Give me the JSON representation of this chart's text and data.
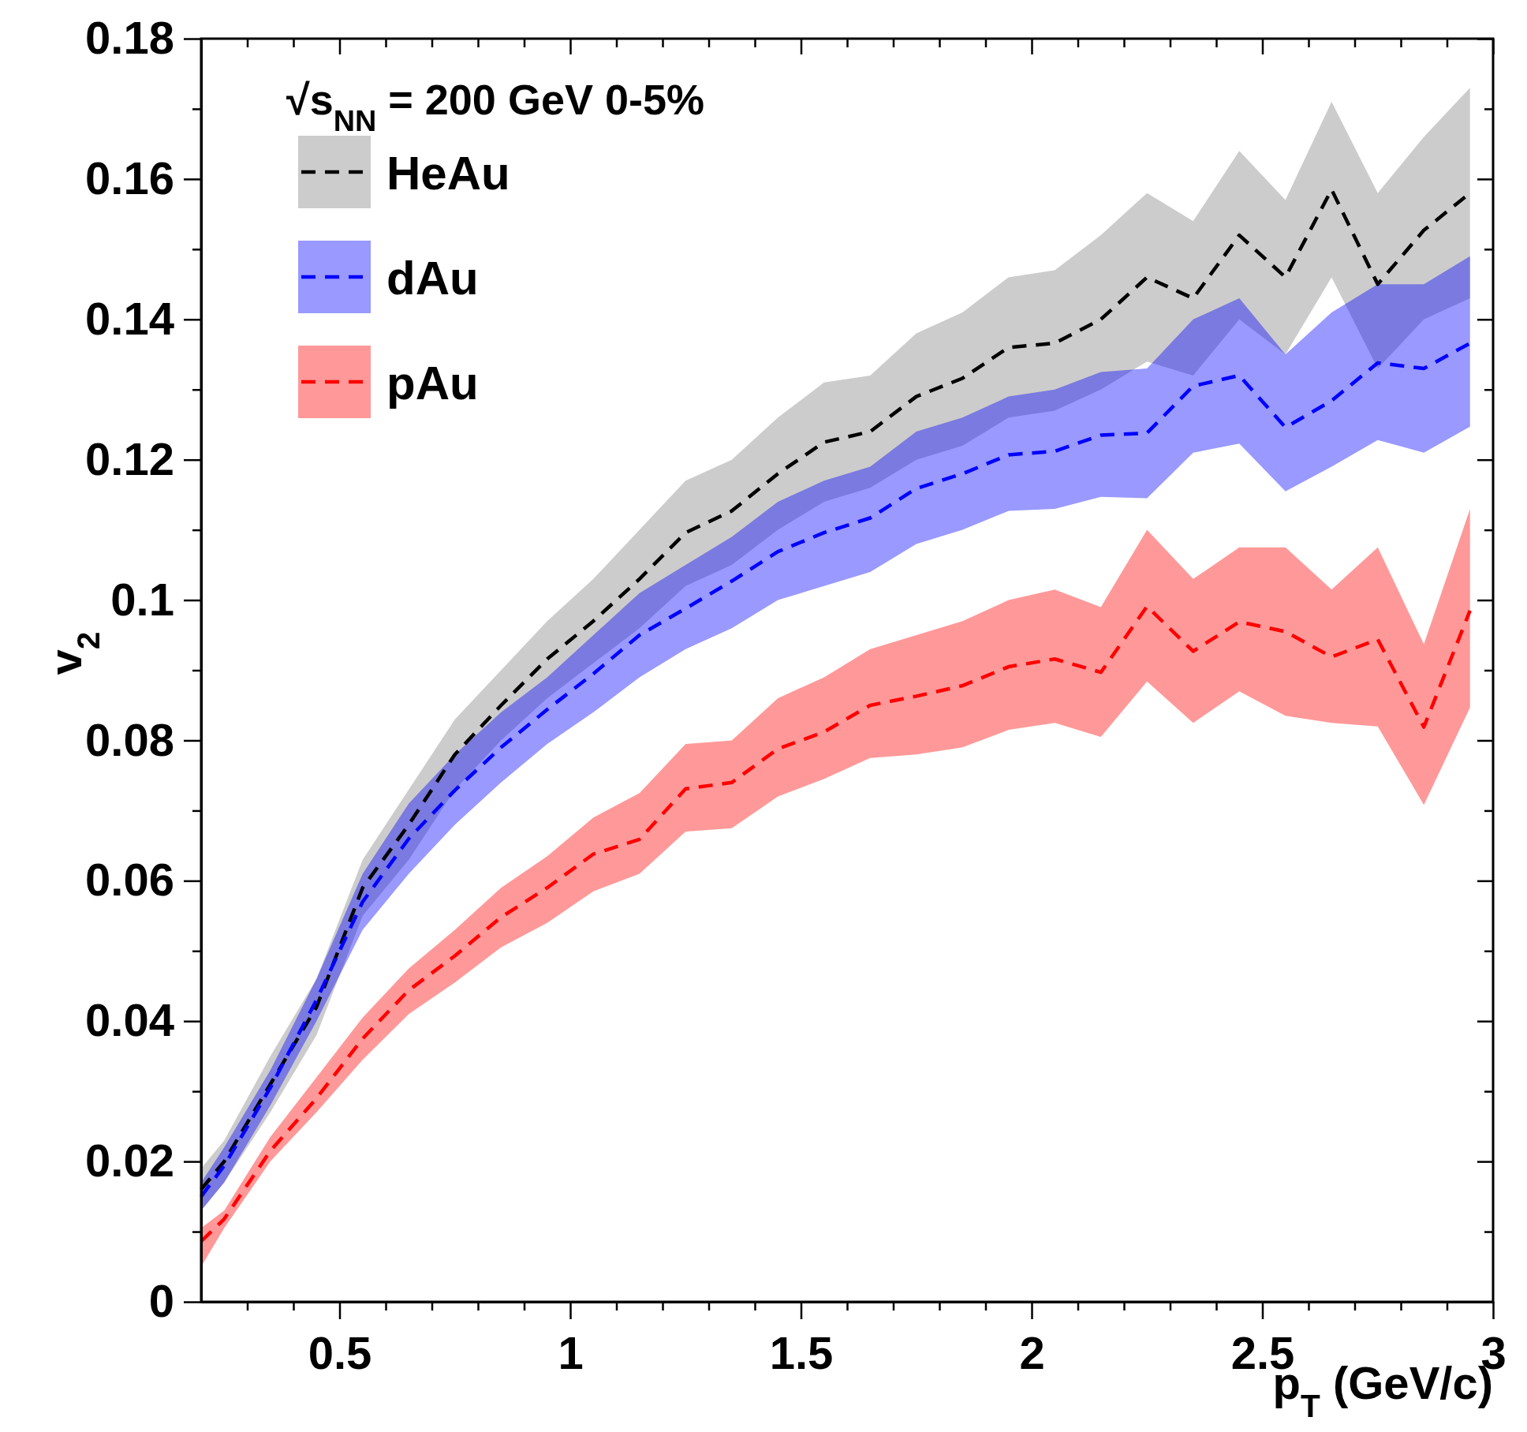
{
  "chart_data": {
    "type": "line",
    "xlabel": "p$_{T}$ (GeV/c)",
    "ylabel": "v$_{2}$",
    "annotations": [
      "√s$_{NN}$ = 200 GeV 0-5%"
    ],
    "x": [
      0.2,
      0.25,
      0.35,
      0.45,
      0.55,
      0.65,
      0.75,
      0.85,
      0.95,
      1.05,
      1.15,
      1.25,
      1.35,
      1.45,
      1.55,
      1.65,
      1.75,
      1.85,
      1.95,
      2.05,
      2.15,
      2.25,
      2.35,
      2.45,
      2.55,
      2.65,
      2.75,
      2.85,
      2.95
    ],
    "xlim": [
      0.2,
      3
    ],
    "xticks": [
      {
        "value": 0.3,
        "label": null
      },
      {
        "value": 0.4,
        "label": null
      },
      0.5,
      {
        "value": 0.6,
        "label": null
      },
      {
        "value": 0.7,
        "label": null
      },
      {
        "value": 0.8,
        "label": null
      },
      {
        "value": 0.9,
        "label": null
      },
      1,
      {
        "value": 1.1,
        "label": null
      },
      {
        "value": 1.2,
        "label": null
      },
      {
        "value": 1.3,
        "label": null
      },
      {
        "value": 1.4,
        "label": null
      },
      1.5,
      {
        "value": 1.6,
        "label": null
      },
      {
        "value": 1.7,
        "label": null
      },
      {
        "value": 1.8,
        "label": null
      },
      {
        "value": 1.9,
        "label": null
      },
      2,
      {
        "value": 2.1,
        "label": null
      },
      {
        "value": 2.2,
        "label": null
      },
      {
        "value": 2.3,
        "label": null
      },
      {
        "value": 2.4,
        "label": null
      },
      2.5,
      {
        "value": 2.6,
        "label": null
      },
      {
        "value": 2.7,
        "label": null
      },
      {
        "value": 2.8,
        "label": null
      },
      {
        "value": 2.9,
        "label": null
      },
      3
    ],
    "ylim": [
      0,
      0.18
    ],
    "yticks": [
      0,
      {
        "value": 0.01,
        "label": null
      },
      0.02,
      {
        "value": 0.03,
        "label": null
      },
      0.04,
      {
        "value": 0.05,
        "label": null
      },
      0.06,
      {
        "value": 0.07,
        "label": null
      },
      0.08,
      {
        "value": 0.09,
        "label": null
      },
      0.1,
      {
        "value": 0.11,
        "label": null
      },
      0.12,
      {
        "value": 0.13,
        "label": null
      },
      0.14,
      {
        "value": 0.15,
        "label": null
      },
      0.16,
      {
        "value": 0.17,
        "label": null
      },
      0.18
    ],
    "legend": "top left",
    "line_style": "dashed",
    "series": [
      {
        "name": "HeAu",
        "color": "#000000",
        "values": [
          0.016,
          0.02,
          0.031,
          0.042,
          0.059,
          0.068,
          0.078,
          0.085,
          0.0916,
          0.097,
          0.103,
          0.1096,
          0.1127,
          0.118,
          0.1225,
          0.124,
          0.129,
          0.1316,
          0.136,
          0.1366,
          0.14,
          0.146,
          0.143,
          0.152,
          0.146,
          0.1585,
          0.145,
          0.1527,
          0.158
        ],
        "lower": [
          0.013,
          0.017,
          0.027,
          0.038,
          0.055,
          0.063,
          0.073,
          0.08,
          0.086,
          0.091,
          0.096,
          0.102,
          0.105,
          0.11,
          0.114,
          0.116,
          0.12,
          0.122,
          0.126,
          0.127,
          0.13,
          0.134,
          0.132,
          0.14,
          0.135,
          0.146,
          0.133,
          0.14,
          0.143
        ],
        "upper": [
          0.019,
          0.023,
          0.035,
          0.046,
          0.063,
          0.073,
          0.083,
          0.09,
          0.097,
          0.103,
          0.11,
          0.117,
          0.12,
          0.126,
          0.131,
          0.132,
          0.138,
          0.141,
          0.146,
          0.147,
          0.152,
          0.158,
          0.154,
          0.164,
          0.157,
          0.171,
          0.158,
          0.166,
          0.173
        ]
      },
      {
        "name": "dAu",
        "color": "#0000ff",
        "values": [
          0.015,
          0.0194,
          0.0305,
          0.043,
          0.057,
          0.066,
          0.0729,
          0.079,
          0.0844,
          0.0895,
          0.095,
          0.0988,
          0.1027,
          0.1069,
          0.1096,
          0.1117,
          0.1159,
          0.118,
          0.1207,
          0.1212,
          0.1235,
          0.1238,
          0.1305,
          0.132,
          0.1246,
          0.1284,
          0.1338,
          0.133,
          0.1366
        ],
        "lower": [
          0.013,
          0.017,
          0.028,
          0.04,
          0.053,
          0.061,
          0.068,
          0.074,
          0.0795,
          0.084,
          0.089,
          0.093,
          0.096,
          0.1,
          0.102,
          0.104,
          0.108,
          0.11,
          0.1127,
          0.113,
          0.1147,
          0.1145,
          0.121,
          0.1223,
          0.1155,
          0.119,
          0.1228,
          0.121,
          0.1247
        ],
        "upper": [
          0.017,
          0.022,
          0.033,
          0.046,
          0.061,
          0.071,
          0.078,
          0.084,
          0.089,
          0.095,
          0.101,
          0.105,
          0.109,
          0.114,
          0.117,
          0.119,
          0.124,
          0.126,
          0.129,
          0.13,
          0.1325,
          0.133,
          0.14,
          0.143,
          0.135,
          0.141,
          0.145,
          0.145,
          0.149
        ]
      },
      {
        "name": "pAu",
        "color": "#ff0000",
        "values": [
          0.0086,
          0.0118,
          0.0215,
          0.029,
          0.0375,
          0.0444,
          0.0493,
          0.0548,
          0.059,
          0.0638,
          0.0659,
          0.0731,
          0.074,
          0.0788,
          0.0812,
          0.085,
          0.0863,
          0.0878,
          0.0905,
          0.0916,
          0.0897,
          0.0991,
          0.0927,
          0.0969,
          0.0955,
          0.0919,
          0.0944,
          0.0819,
          0.0985
        ],
        "lower": [
          0.005,
          0.0105,
          0.02,
          0.027,
          0.0345,
          0.041,
          0.0455,
          0.0505,
          0.054,
          0.0585,
          0.061,
          0.067,
          0.0675,
          0.072,
          0.0745,
          0.0775,
          0.078,
          0.079,
          0.0815,
          0.0825,
          0.0805,
          0.0884,
          0.0825,
          0.087,
          0.0835,
          0.0825,
          0.082,
          0.0708,
          0.0847
        ],
        "upper": [
          0.0105,
          0.013,
          0.0235,
          0.032,
          0.0405,
          0.0475,
          0.053,
          0.059,
          0.0635,
          0.069,
          0.0725,
          0.0795,
          0.08,
          0.086,
          0.089,
          0.093,
          0.095,
          0.097,
          0.1,
          0.1015,
          0.099,
          0.11,
          0.103,
          0.1075,
          0.1075,
          0.1015,
          0.1075,
          0.0937,
          0.113
        ]
      }
    ]
  }
}
